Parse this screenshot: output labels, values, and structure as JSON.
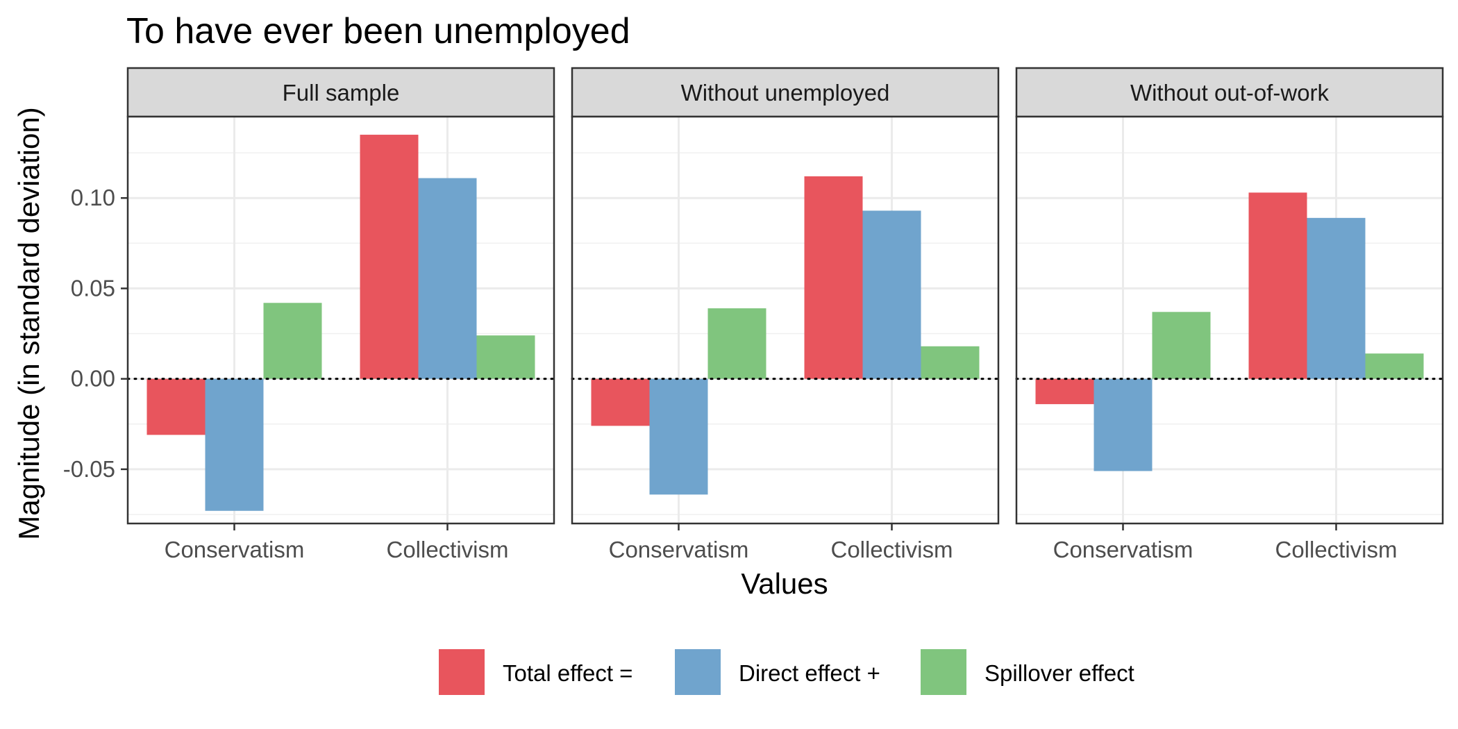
{
  "chart_data": {
    "type": "bar",
    "title": "To have ever been unemployed",
    "xlabel": "Values",
    "ylabel": "Magnitude (in standard deviation)",
    "ylim": [
      -0.08,
      0.145
    ],
    "yticks": [
      -0.05,
      0.0,
      0.05,
      0.1
    ],
    "ytick_labels": [
      "-0.05",
      "0.00",
      "0.05",
      "0.10"
    ],
    "grid": true,
    "reference_line": {
      "y": 0,
      "style": "dotted"
    },
    "categories": [
      "Conservatism",
      "Collectivism"
    ],
    "legend": {
      "position": "bottom",
      "entries": [
        "Total effect =",
        "Direct effect +",
        "Spillover effect"
      ]
    },
    "colors": {
      "Total effect =": "#e8555d",
      "Direct effect +": "#70a4cd",
      "Spillover effect": "#80c57e"
    },
    "panels": [
      {
        "name": "Full sample",
        "series": [
          {
            "name": "Total effect =",
            "values": [
              -0.031,
              0.135
            ]
          },
          {
            "name": "Direct effect +",
            "values": [
              -0.073,
              0.111
            ]
          },
          {
            "name": "Spillover effect",
            "values": [
              0.042,
              0.024
            ]
          }
        ]
      },
      {
        "name": "Without unemployed",
        "series": [
          {
            "name": "Total effect =",
            "values": [
              -0.026,
              0.112
            ]
          },
          {
            "name": "Direct effect +",
            "values": [
              -0.064,
              0.093
            ]
          },
          {
            "name": "Spillover effect",
            "values": [
              0.039,
              0.018
            ]
          }
        ]
      },
      {
        "name": "Without out-of-work",
        "series": [
          {
            "name": "Total effect =",
            "values": [
              -0.014,
              0.103
            ]
          },
          {
            "name": "Direct effect +",
            "values": [
              -0.051,
              0.089
            ]
          },
          {
            "name": "Spillover effect",
            "values": [
              0.037,
              0.014
            ]
          }
        ]
      }
    ]
  }
}
